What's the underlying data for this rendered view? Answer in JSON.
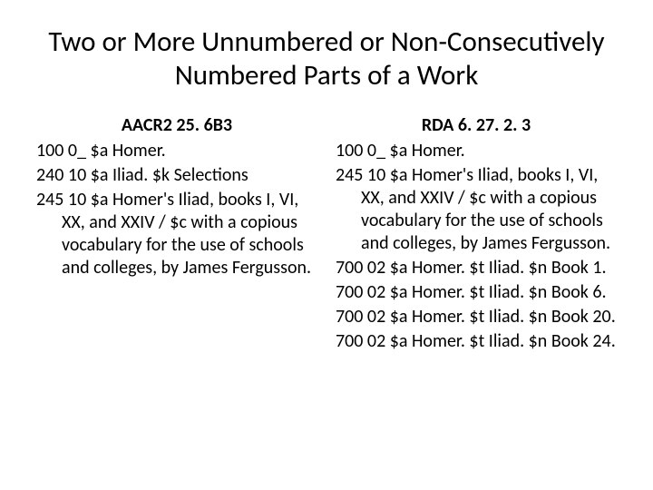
{
  "title": "Two or More Unnumbered or Non-Consecutively Numbered Parts of a Work",
  "left": {
    "heading": "AACR2  25. 6B3",
    "lines": [
      "100 0_ $a Homer.",
      "240 10 $a Iliad. $k Selections",
      "245 10 $a Homer's Iliad, books I, VI, XX, and XXIV / $c with a copious vocabulary for the use of schools and colleges, by James Fergusson."
    ]
  },
  "right": {
    "heading": "RDA  6. 27. 2. 3",
    "lines": [
      "100 0_ $a Homer.",
      "245 10 $a Homer's Iliad, books I, VI, XX, and XXIV / $c with a copious vocabulary for the use of schools and colleges, by James Fergusson.",
      "700 02 $a Homer. $t Iliad. $n Book 1.",
      "700 02 $a Homer. $t Iliad. $n Book 6.",
      "700 02 $a Homer. $t Iliad. $n Book 20.",
      "700 02 $a Homer. $t Iliad. $n Book 24."
    ]
  },
  "style": {
    "background_color": "#ffffff",
    "text_color": "#000000",
    "title_fontsize": 31,
    "heading_fontsize": 20,
    "body_fontsize": 20,
    "font_family": "Calibri, Arial, sans-serif"
  }
}
